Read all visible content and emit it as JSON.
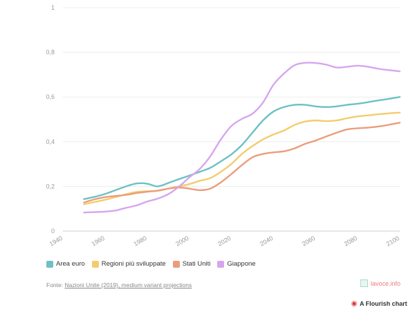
{
  "chart_data": {
    "type": "line",
    "title": "",
    "xlabel": "",
    "ylabel": "",
    "xlim": [
      1940,
      2100
    ],
    "ylim": [
      0,
      1
    ],
    "x_ticks": [
      "1940",
      "1960",
      "1980",
      "2000",
      "2020",
      "2040",
      "2060",
      "2080",
      "2100"
    ],
    "y_ticks": [
      "0",
      "0,2",
      "0,4",
      "0,6",
      "0,8",
      "1"
    ],
    "grid": true,
    "legend_position": "bottom-left",
    "x": [
      1950,
      1955,
      1960,
      1965,
      1970,
      1975,
      1980,
      1985,
      1990,
      1995,
      2000,
      2005,
      2010,
      2015,
      2020,
      2025,
      2030,
      2035,
      2040,
      2045,
      2050,
      2055,
      2060,
      2065,
      2070,
      2075,
      2080,
      2085,
      2090,
      2095,
      2100
    ],
    "series": [
      {
        "name": "Area euro",
        "color": "#6cc1c4",
        "values": [
          0.143,
          0.153,
          0.166,
          0.183,
          0.2,
          0.213,
          0.212,
          0.2,
          0.215,
          0.232,
          0.248,
          0.265,
          0.283,
          0.312,
          0.343,
          0.385,
          0.44,
          0.495,
          0.535,
          0.555,
          0.565,
          0.565,
          0.558,
          0.555,
          0.558,
          0.565,
          0.57,
          0.577,
          0.585,
          0.592,
          0.6
        ]
      },
      {
        "name": "Regioni più sviluppate",
        "color": "#f2cd6e",
        "values": [
          0.12,
          0.13,
          0.14,
          0.152,
          0.165,
          0.175,
          0.178,
          0.18,
          0.19,
          0.2,
          0.21,
          0.225,
          0.237,
          0.265,
          0.3,
          0.345,
          0.38,
          0.41,
          0.432,
          0.45,
          0.475,
          0.49,
          0.495,
          0.492,
          0.495,
          0.505,
          0.513,
          0.518,
          0.523,
          0.527,
          0.53
        ]
      },
      {
        "name": "Stati Uniti",
        "color": "#eb9d7b",
        "values": [
          0.128,
          0.142,
          0.152,
          0.157,
          0.162,
          0.17,
          0.176,
          0.181,
          0.19,
          0.195,
          0.19,
          0.183,
          0.19,
          0.218,
          0.255,
          0.295,
          0.33,
          0.345,
          0.352,
          0.357,
          0.37,
          0.39,
          0.405,
          0.423,
          0.44,
          0.455,
          0.46,
          0.463,
          0.468,
          0.476,
          0.485
        ]
      },
      {
        "name": "Giappone",
        "color": "#d7a5ee",
        "values": [
          0.083,
          0.085,
          0.087,
          0.092,
          0.104,
          0.115,
          0.132,
          0.145,
          0.165,
          0.198,
          0.24,
          0.278,
          0.335,
          0.41,
          0.47,
          0.502,
          0.525,
          0.575,
          0.655,
          0.705,
          0.742,
          0.753,
          0.752,
          0.745,
          0.732,
          0.735,
          0.74,
          0.735,
          0.726,
          0.72,
          0.715
        ]
      }
    ]
  },
  "footer": {
    "source_prefix": "Fonte: ",
    "source_link": "Nazioni Unite (2019), medium variant projections",
    "brand": "lavoce.info",
    "credit": "A Flourish chart"
  }
}
